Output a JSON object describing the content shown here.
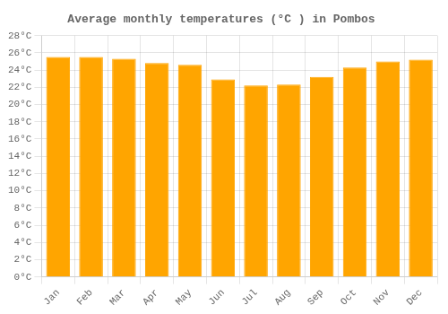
{
  "chart_data": {
    "type": "bar",
    "title": "Average monthly temperatures (°C ) in Pombos",
    "categories": [
      "Jan",
      "Feb",
      "Mar",
      "Apr",
      "May",
      "Jun",
      "Jul",
      "Aug",
      "Sep",
      "Oct",
      "Nov",
      "Dec"
    ],
    "values": [
      25.5,
      25.5,
      25.3,
      24.8,
      24.6,
      22.9,
      22.2,
      22.3,
      23.2,
      24.3,
      25.0,
      25.2
    ],
    "color": "#FFA500",
    "ylim": [
      0,
      28
    ],
    "yticks": [
      {
        "value": 0,
        "label": "0°C"
      },
      {
        "value": 2,
        "label": "2°C"
      },
      {
        "value": 4,
        "label": "4°C"
      },
      {
        "value": 6,
        "label": "6°C"
      },
      {
        "value": 8,
        "label": "8°C"
      },
      {
        "value": 10,
        "label": "10°C"
      },
      {
        "value": 12,
        "label": "12°C"
      },
      {
        "value": 14,
        "label": "14°C"
      },
      {
        "value": 16,
        "label": "16°C"
      },
      {
        "value": 18,
        "label": "18°C"
      },
      {
        "value": 20,
        "label": "20°C"
      },
      {
        "value": 22,
        "label": "22°C"
      },
      {
        "value": 24,
        "label": "24°C"
      },
      {
        "value": 26,
        "label": "26°C"
      },
      {
        "value": 28,
        "label": "28°C"
      }
    ],
    "grid": true
  }
}
